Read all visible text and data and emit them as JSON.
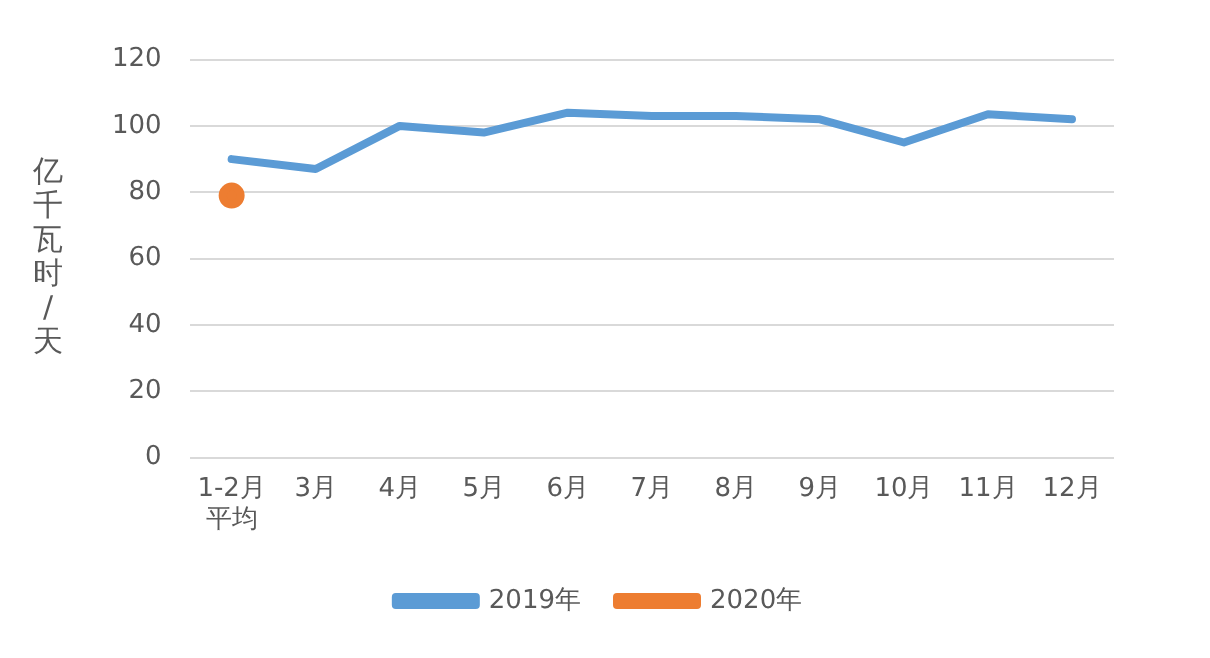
{
  "chart_data": {
    "type": "line",
    "ylabel": "亿千瓦时/天",
    "categories": [
      "1-2月平均",
      "3月",
      "4月",
      "5月",
      "6月",
      "7月",
      "8月",
      "9月",
      "10月",
      "11月",
      "12月"
    ],
    "series": [
      {
        "name": "2019年",
        "color": "#5b9bd5",
        "marker": "none",
        "values": [
          90,
          87,
          100,
          98,
          104,
          103,
          103,
          102,
          95,
          103.5,
          102
        ]
      },
      {
        "name": "2020年",
        "color": "#ed7d31",
        "marker": "circle",
        "values": [
          79,
          null,
          null,
          null,
          null,
          null,
          null,
          null,
          null,
          null,
          null
        ]
      }
    ],
    "ylim": [
      0,
      120
    ],
    "yticks": [
      0,
      20,
      40,
      60,
      80,
      100,
      120
    ],
    "grid": "y",
    "legend": "bottom"
  }
}
